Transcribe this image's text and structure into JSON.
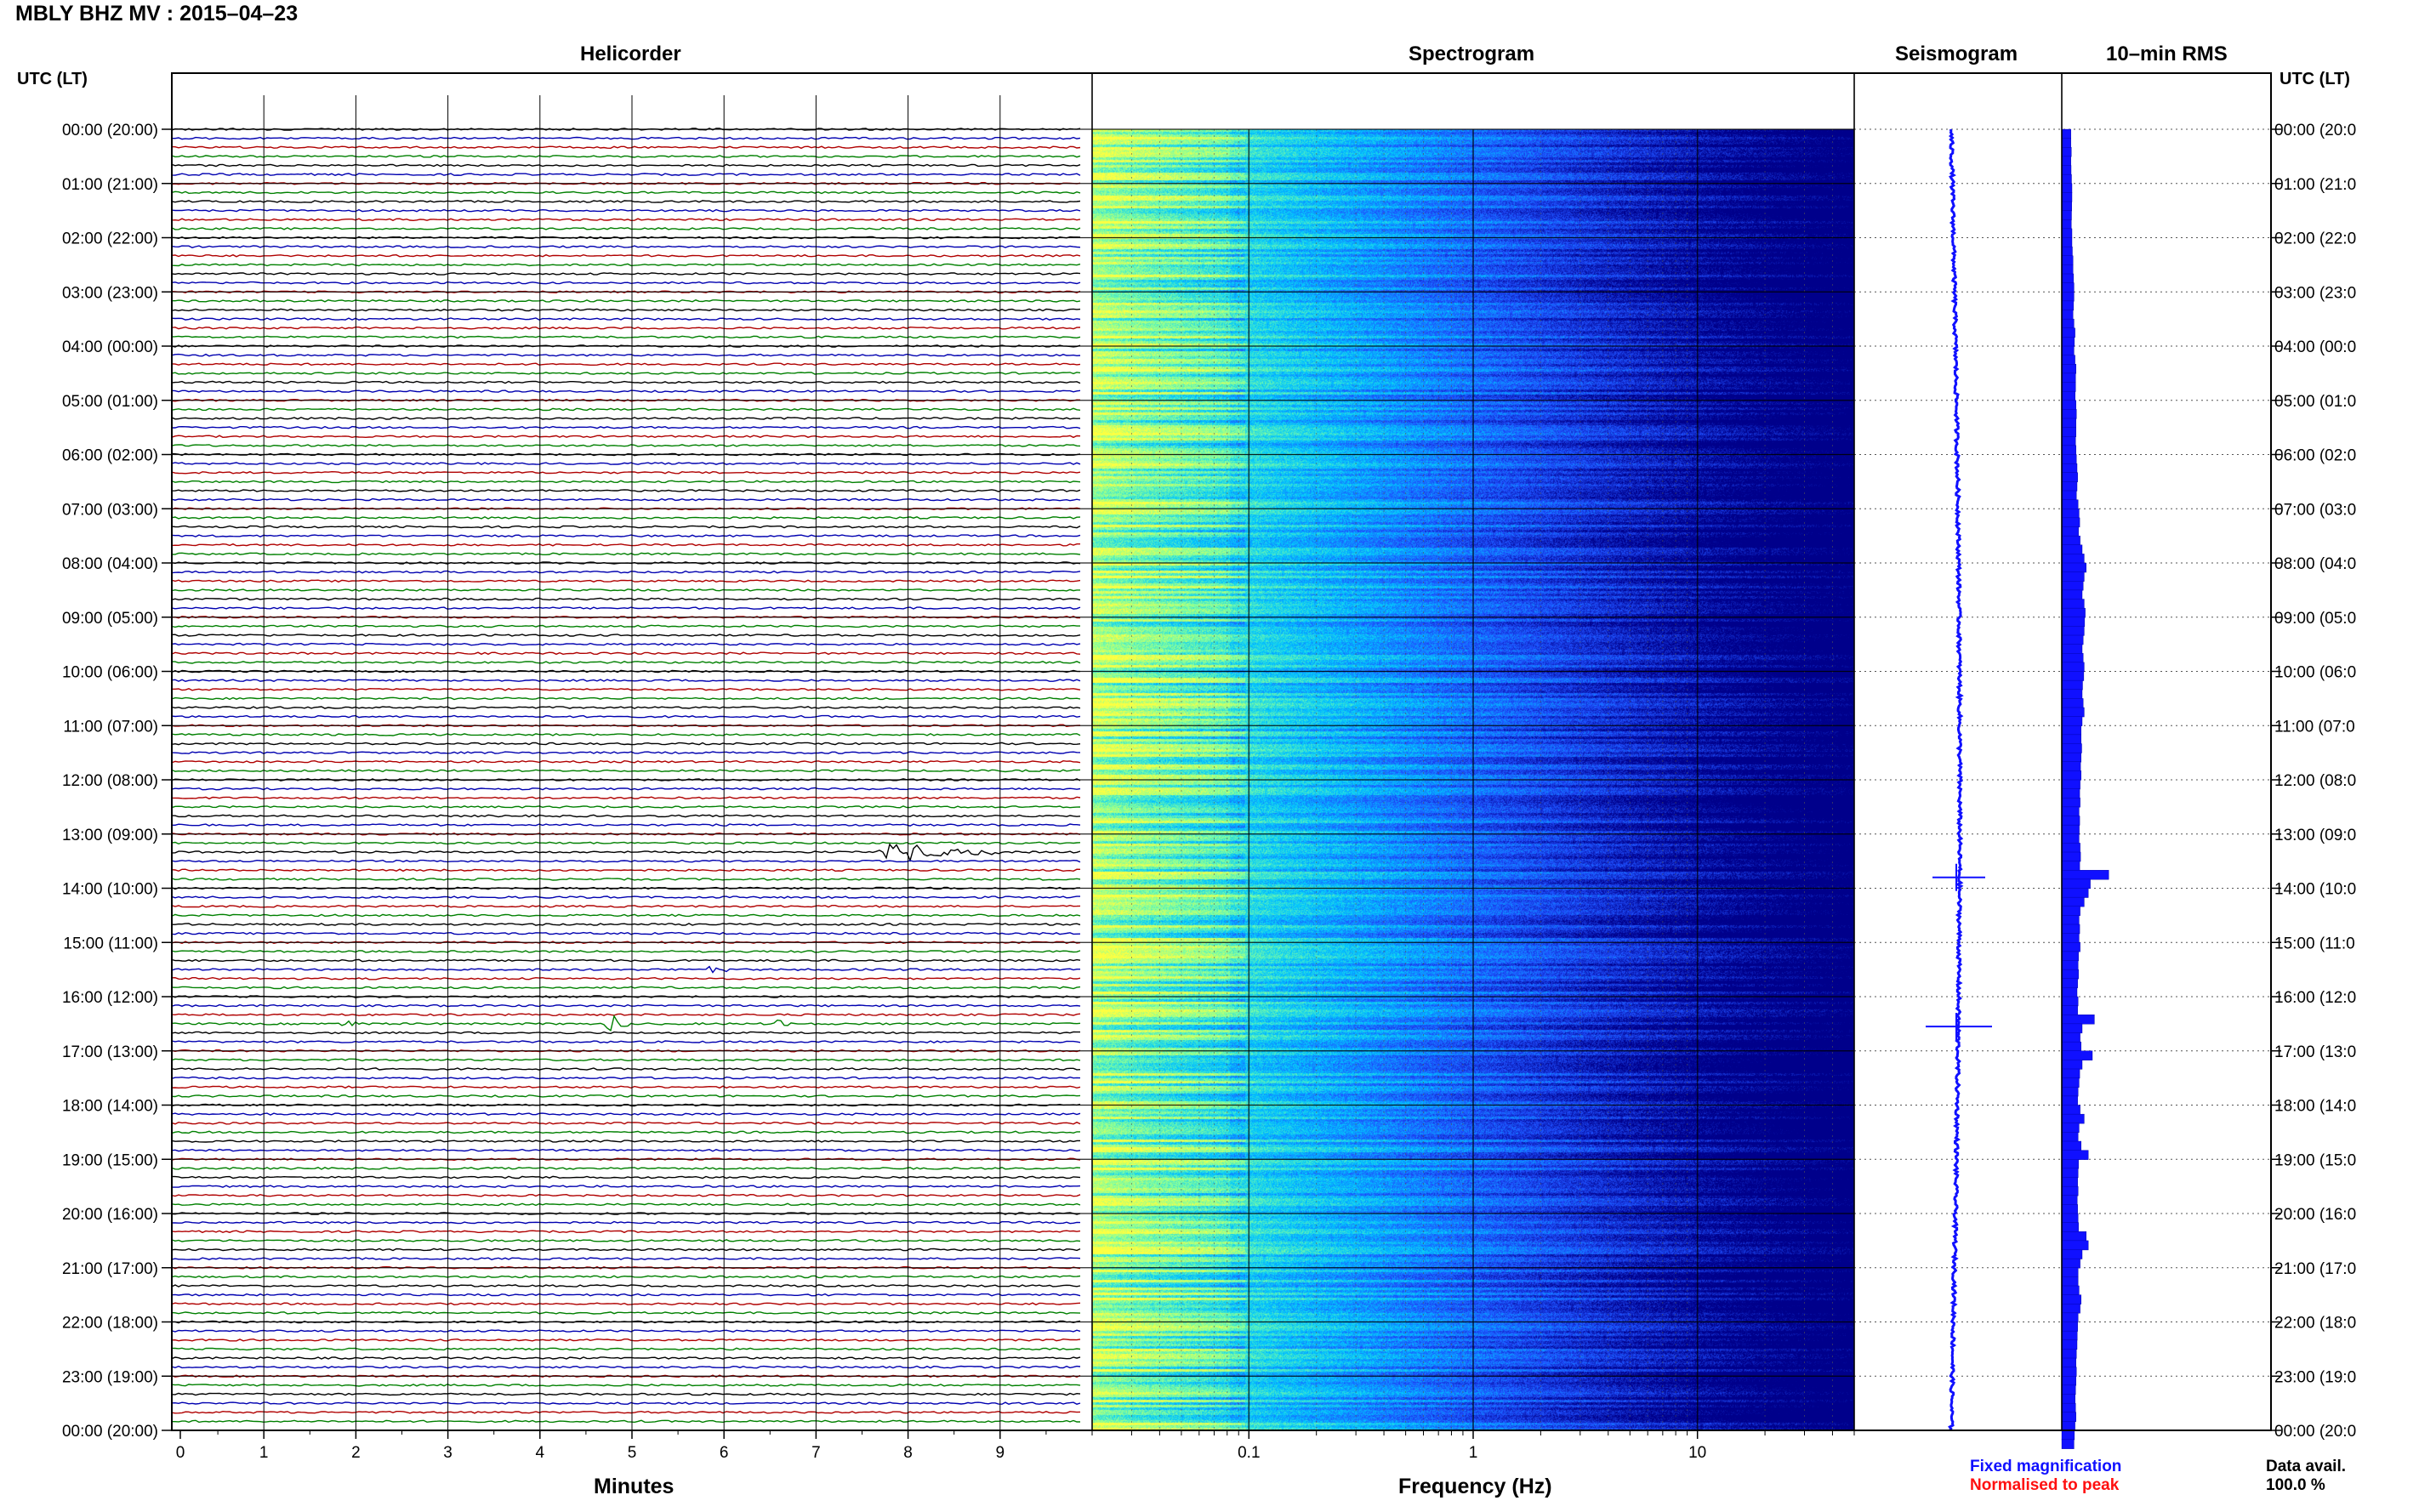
{
  "title": "MBLY BHZ MV : 2015–04–23",
  "panels": {
    "helicorder": "Helicorder",
    "spectrogram": "Spectrogram",
    "seismogram": "Seismogram",
    "rms": "10–min RMS"
  },
  "left_axis_title": "UTC (LT)",
  "right_axis_title": "UTC (LT)",
  "hour_labels_left": [
    "00:00 (20:00)",
    "01:00 (21:00)",
    "02:00 (22:00)",
    "03:00 (23:00)",
    "04:00 (00:00)",
    "05:00 (01:00)",
    "06:00 (02:00)",
    "07:00 (03:00)",
    "08:00 (04:00)",
    "09:00 (05:00)",
    "10:00 (06:00)",
    "11:00 (07:00)",
    "12:00 (08:00)",
    "13:00 (09:00)",
    "14:00 (10:00)",
    "15:00 (11:00)",
    "16:00 (12:00)",
    "17:00 (13:00)",
    "18:00 (14:00)",
    "19:00 (15:00)",
    "20:00 (16:00)",
    "21:00 (17:00)",
    "22:00 (18:00)",
    "23:00 (19:00)",
    "00:00 (20:00)"
  ],
  "hour_labels_right": [
    "00:00 (20:0",
    "01:00 (21:0",
    "02:00 (22:0",
    "03:00 (23:0",
    "04:00 (00:0",
    "05:00 (01:0",
    "06:00 (02:0",
    "07:00 (03:0",
    "08:00 (04:0",
    "09:00 (05:0",
    "10:00 (06:0",
    "11:00 (07:0",
    "12:00 (08:0",
    "13:00 (09:0",
    "14:00 (10:0",
    "15:00 (11:0",
    "16:00 (12:0",
    "17:00 (13:0",
    "18:00 (14:0",
    "19:00 (15:0",
    "20:00 (16:0",
    "21:00 (17:0",
    "22:00 (18:0",
    "23:00 (19:0",
    "00:00 (20:0"
  ],
  "helicorder_xlabel": "Minutes",
  "spectrogram_xlabel": "Frequency (Hz)",
  "legend": {
    "fixed": "Fixed magnification",
    "fixed_color": "#1010ff",
    "normalised": "Normalised to peak",
    "normalised_color": "#ff1010"
  },
  "data_avail_label": "Data avail.",
  "data_avail_value": "100.0 %",
  "chart_data": [
    {
      "type": "line",
      "panel": "helicorder",
      "x_unit": "Minutes",
      "xlim": [
        0,
        10
      ],
      "x_ticks": [
        "0",
        "1",
        "2",
        "3",
        "4",
        "5",
        "6",
        "7",
        "8",
        "9"
      ],
      "lines_per_hour": 6,
      "trace_colors": [
        "#000000",
        "#0000b0",
        "#b00000",
        "#008000"
      ],
      "events": [
        {
          "hour": 13,
          "minute": 8.0,
          "amplitude": "large"
        },
        {
          "hour": 16,
          "minute": 4.8,
          "amplitude": "medium"
        },
        {
          "hour": 16,
          "minute": 1.9,
          "amplitude": "small"
        },
        {
          "hour": 16,
          "minute": 6.6,
          "amplitude": "small"
        },
        {
          "hour": 15,
          "minute": 5.9,
          "amplitude": "small"
        }
      ]
    },
    {
      "type": "heatmap",
      "panel": "spectrogram",
      "x_scale": "log",
      "xlim": [
        0.02,
        50
      ],
      "x_ticks": [
        "0.1",
        "1",
        "10"
      ],
      "colormap": [
        "#00008b",
        "#1f4fff",
        "#00c8ff",
        "#7fffa0",
        "#ffff40"
      ]
    },
    {
      "type": "line",
      "panel": "seismogram",
      "color": "#1010ff",
      "spikes_hours": [
        13.8,
        16.55
      ]
    },
    {
      "type": "bar",
      "panel": "10-min RMS",
      "color": "#1010ff",
      "bins_per_hour": 6,
      "values_relative": [
        0.45,
        0.45,
        0.47,
        0.45,
        0.46,
        0.48,
        0.5,
        0.5,
        0.49,
        0.48,
        0.47,
        0.5,
        0.5,
        0.52,
        0.55,
        0.55,
        0.58,
        0.6,
        0.6,
        0.58,
        0.55,
        0.6,
        0.65,
        0.62,
        0.6,
        0.65,
        0.7,
        0.68,
        0.68,
        0.66,
        0.7,
        0.72,
        0.7,
        0.7,
        0.68,
        0.7,
        0.72,
        0.75,
        0.78,
        0.75,
        0.72,
        0.8,
        0.85,
        0.88,
        0.82,
        0.9,
        1.0,
        1.1,
        1.2,
        1.1,
        1.05,
        1.0,
        1.1,
        1.15,
        1.12,
        1.1,
        1.05,
        1.0,
        1.05,
        1.1,
        1.08,
        1.02,
        1.0,
        1.05,
        1.1,
        1.0,
        0.95,
        0.95,
        0.98,
        0.95,
        0.92,
        0.95,
        0.9,
        0.88,
        0.9,
        0.85,
        0.88,
        0.86,
        0.85,
        0.9,
        0.92,
        0.88,
        2.3,
        1.4,
        1.3,
        1.1,
        0.9,
        0.85,
        0.88,
        0.85,
        0.9,
        0.82,
        0.8,
        0.82,
        0.78,
        0.75,
        0.8,
        0.78,
        1.6,
        1.0,
        0.9,
        0.95,
        1.5,
        1.0,
        0.88,
        0.85,
        0.8,
        0.78,
        0.9,
        1.1,
        0.85,
        0.8,
        0.95,
        1.3,
        0.82,
        0.8,
        0.78,
        0.8,
        0.76,
        0.78,
        0.8,
        0.82,
        1.2,
        1.3,
        1.0,
        0.9,
        0.8,
        0.8,
        0.85,
        0.95,
        0.9,
        0.8,
        0.78,
        0.76,
        0.75,
        0.72,
        0.7,
        0.72,
        0.7,
        0.68,
        0.66,
        0.68,
        0.7,
        0.65,
        0.62,
        0.6
      ]
    }
  ]
}
